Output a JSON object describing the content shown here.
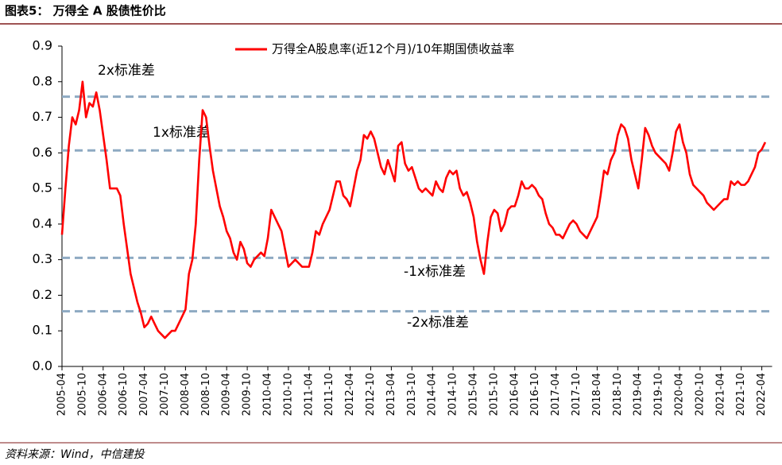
{
  "chart_data": {
    "type": "line",
    "title": "图表5：  万得全 A 股债性价比",
    "source": "资料来源：Wind，中信建投",
    "x": [
      "2005-04",
      "2005-05",
      "2005-06",
      "2005-07",
      "2005-08",
      "2005-09",
      "2005-10",
      "2005-11",
      "2005-12",
      "2006-01",
      "2006-02",
      "2006-03",
      "2006-04",
      "2006-05",
      "2006-06",
      "2006-07",
      "2006-08",
      "2006-09",
      "2006-10",
      "2006-11",
      "2006-12",
      "2007-01",
      "2007-02",
      "2007-03",
      "2007-04",
      "2007-05",
      "2007-06",
      "2007-07",
      "2007-08",
      "2007-09",
      "2007-10",
      "2007-11",
      "2007-12",
      "2008-01",
      "2008-02",
      "2008-03",
      "2008-04",
      "2008-05",
      "2008-06",
      "2008-07",
      "2008-08",
      "2008-09",
      "2008-10",
      "2008-11",
      "2008-12",
      "2009-01",
      "2009-02",
      "2009-03",
      "2009-04",
      "2009-05",
      "2009-06",
      "2009-07",
      "2009-08",
      "2009-09",
      "2009-10",
      "2009-11",
      "2009-12",
      "2010-01",
      "2010-02",
      "2010-03",
      "2010-04",
      "2010-05",
      "2010-06",
      "2010-07",
      "2010-08",
      "2010-09",
      "2010-10",
      "2010-11",
      "2010-12",
      "2011-01",
      "2011-02",
      "2011-03",
      "2011-04",
      "2011-05",
      "2011-06",
      "2011-07",
      "2011-08",
      "2011-09",
      "2011-10",
      "2011-11",
      "2011-12",
      "2012-01",
      "2012-02",
      "2012-03",
      "2012-04",
      "2012-05",
      "2012-06",
      "2012-07",
      "2012-08",
      "2012-09",
      "2012-10",
      "2012-11",
      "2012-12",
      "2013-01",
      "2013-02",
      "2013-03",
      "2013-04",
      "2013-05",
      "2013-06",
      "2013-07",
      "2013-08",
      "2013-09",
      "2013-10",
      "2013-11",
      "2013-12",
      "2014-01",
      "2014-02",
      "2014-03",
      "2014-04",
      "2014-05",
      "2014-06",
      "2014-07",
      "2014-08",
      "2014-09",
      "2014-10",
      "2014-11",
      "2014-12",
      "2015-01",
      "2015-02",
      "2015-03",
      "2015-04",
      "2015-05",
      "2015-06",
      "2015-07",
      "2015-08",
      "2015-09",
      "2015-10",
      "2015-11",
      "2015-12",
      "2016-01",
      "2016-02",
      "2016-03",
      "2016-04",
      "2016-05",
      "2016-06",
      "2016-07",
      "2016-08",
      "2016-09",
      "2016-10",
      "2016-11",
      "2016-12",
      "2017-01",
      "2017-02",
      "2017-03",
      "2017-04",
      "2017-05",
      "2017-06",
      "2017-07",
      "2017-08",
      "2017-09",
      "2017-10",
      "2017-11",
      "2017-12",
      "2018-01",
      "2018-02",
      "2018-03",
      "2018-04",
      "2018-05",
      "2018-06",
      "2018-07",
      "2018-08",
      "2018-09",
      "2018-10",
      "2018-11",
      "2018-12",
      "2019-01",
      "2019-02",
      "2019-03",
      "2019-04",
      "2019-05",
      "2019-06",
      "2019-07",
      "2019-08",
      "2019-09",
      "2019-10",
      "2019-11",
      "2019-12",
      "2020-01",
      "2020-02",
      "2020-03",
      "2020-04",
      "2020-05",
      "2020-06",
      "2020-07",
      "2020-08",
      "2020-09",
      "2020-10",
      "2020-11",
      "2020-12",
      "2021-01",
      "2021-02",
      "2021-03",
      "2021-04",
      "2021-05",
      "2021-06",
      "2021-07",
      "2021-08",
      "2021-09",
      "2021-10",
      "2021-11",
      "2021-12",
      "2022-01",
      "2022-02",
      "2022-03",
      "2022-04",
      "2022-05"
    ],
    "series": [
      {
        "name": "万得全A股息率(近12个月)/10年期国债收益率",
        "color": "#ff0000",
        "values": [
          0.37,
          0.5,
          0.62,
          0.7,
          0.68,
          0.72,
          0.8,
          0.7,
          0.74,
          0.73,
          0.77,
          0.72,
          0.65,
          0.58,
          0.5,
          0.5,
          0.5,
          0.48,
          0.4,
          0.33,
          0.26,
          0.22,
          0.18,
          0.15,
          0.11,
          0.12,
          0.14,
          0.12,
          0.1,
          0.09,
          0.08,
          0.09,
          0.1,
          0.1,
          0.12,
          0.14,
          0.16,
          0.26,
          0.3,
          0.4,
          0.58,
          0.72,
          0.7,
          0.62,
          0.55,
          0.5,
          0.45,
          0.42,
          0.38,
          0.36,
          0.32,
          0.3,
          0.35,
          0.33,
          0.29,
          0.28,
          0.3,
          0.31,
          0.32,
          0.31,
          0.36,
          0.44,
          0.42,
          0.4,
          0.38,
          0.33,
          0.28,
          0.29,
          0.3,
          0.29,
          0.28,
          0.28,
          0.28,
          0.32,
          0.38,
          0.37,
          0.4,
          0.42,
          0.44,
          0.48,
          0.52,
          0.52,
          0.48,
          0.47,
          0.45,
          0.5,
          0.55,
          0.58,
          0.65,
          0.64,
          0.66,
          0.64,
          0.6,
          0.56,
          0.54,
          0.58,
          0.55,
          0.52,
          0.62,
          0.63,
          0.57,
          0.55,
          0.56,
          0.53,
          0.5,
          0.49,
          0.5,
          0.49,
          0.48,
          0.52,
          0.5,
          0.49,
          0.53,
          0.55,
          0.54,
          0.55,
          0.5,
          0.48,
          0.49,
          0.46,
          0.42,
          0.35,
          0.3,
          0.26,
          0.35,
          0.42,
          0.44,
          0.43,
          0.38,
          0.4,
          0.44,
          0.45,
          0.45,
          0.48,
          0.52,
          0.5,
          0.5,
          0.51,
          0.5,
          0.48,
          0.47,
          0.43,
          0.4,
          0.39,
          0.37,
          0.37,
          0.36,
          0.38,
          0.4,
          0.41,
          0.4,
          0.38,
          0.37,
          0.36,
          0.38,
          0.4,
          0.42,
          0.48,
          0.55,
          0.54,
          0.58,
          0.6,
          0.65,
          0.68,
          0.67,
          0.64,
          0.58,
          0.54,
          0.5,
          0.58,
          0.67,
          0.65,
          0.62,
          0.6,
          0.59,
          0.58,
          0.57,
          0.55,
          0.6,
          0.66,
          0.68,
          0.63,
          0.6,
          0.54,
          0.51,
          0.5,
          0.49,
          0.48,
          0.46,
          0.45,
          0.44,
          0.45,
          0.46,
          0.47,
          0.47,
          0.52,
          0.51,
          0.52,
          0.51,
          0.51,
          0.52,
          0.54,
          0.56,
          0.6,
          0.61,
          0.63
        ]
      }
    ],
    "xlim": [
      "2005-04",
      "2022-07"
    ],
    "xticks": [
      "2005-04",
      "2005-10",
      "2006-04",
      "2006-10",
      "2007-04",
      "2007-10",
      "2008-04",
      "2008-10",
      "2009-04",
      "2009-10",
      "2010-04",
      "2010-10",
      "2011-04",
      "2011-10",
      "2012-04",
      "2012-10",
      "2013-04",
      "2013-10",
      "2014-04",
      "2014-10",
      "2015-04",
      "2015-10",
      "2016-04",
      "2016-10",
      "2017-04",
      "2017-10",
      "2018-04",
      "2018-10",
      "2019-04",
      "2019-10",
      "2020-04",
      "2020-10",
      "2021-04",
      "2021-10",
      "2022-04"
    ],
    "ylim": [
      0,
      0.9
    ],
    "yticks": [
      {
        "value": 0,
        "label": "0.0"
      },
      0.1,
      0.2,
      0.3,
      0.4,
      0.5,
      0.6,
      0.7,
      0.8,
      0.9
    ],
    "reference_lines": [
      {
        "value": 0.758,
        "label": "2x标准差"
      },
      {
        "value": 0.607,
        "label": "1x标准差"
      },
      {
        "value": 0.305,
        "label": "-1x标准差"
      },
      {
        "value": 0.155,
        "label": "-2x标准差"
      }
    ],
    "reference_color": "#8eaac2",
    "legend": "top"
  }
}
